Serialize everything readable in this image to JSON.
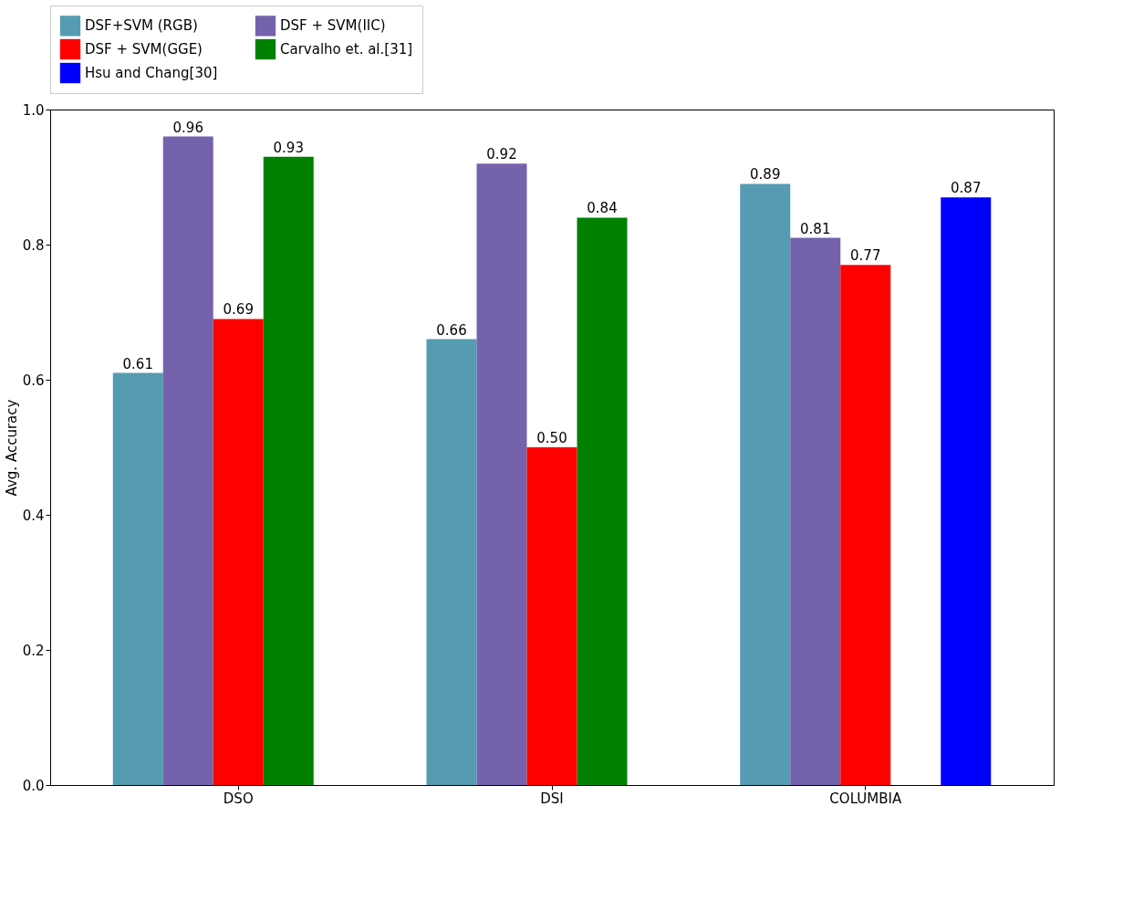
{
  "chart_data": {
    "type": "bar",
    "ylabel": "Avg. Accuracy",
    "categories": [
      "DSO",
      "DSI",
      "COLUMBIA"
    ],
    "series": [
      {
        "name": "DSF+SVM (RGB)",
        "color": "#559cb2",
        "values": [
          0.61,
          0.66,
          0.89
        ],
        "value_labels": [
          "0.61",
          "0.66",
          "0.89"
        ]
      },
      {
        "name": "DSF + SVM(IIC)",
        "color": "#7562ad",
        "values": [
          0.96,
          0.92,
          0.81
        ],
        "value_labels": [
          "0.96",
          "0.92",
          "0.81"
        ]
      },
      {
        "name": "DSF + SVM(GGE)",
        "color": "#ff0000",
        "values": [
          0.69,
          0.5,
          0.77
        ],
        "value_labels": [
          "0.69",
          "0.50",
          "0.77"
        ]
      },
      {
        "name": "Carvalho et. al.[31]",
        "color": "#008000",
        "values": [
          0.93,
          0.84,
          null
        ],
        "value_labels": [
          "0.93",
          "0.84",
          null
        ]
      },
      {
        "name": "Hsu and Chang[30]",
        "color": "#0000ff",
        "values": [
          null,
          null,
          0.87
        ],
        "value_labels": [
          null,
          null,
          "0.87"
        ]
      }
    ],
    "ylim": [
      0,
      1.0
    ],
    "yticks": [
      {
        "value": 0,
        "label": "0.0"
      },
      0.2,
      0.4,
      0.6,
      0.8,
      {
        "value": 1.0,
        "label": "1.0"
      }
    ],
    "legend": "top",
    "grid": false
  }
}
